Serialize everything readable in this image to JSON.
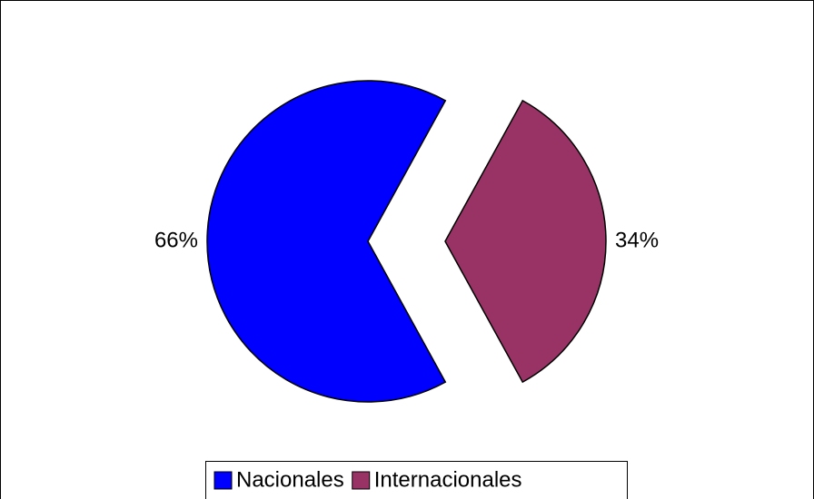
{
  "chart_data": {
    "type": "pie",
    "categories": [
      "Nacionales",
      "Internacionales"
    ],
    "values": [
      66,
      34
    ],
    "value_labels": [
      "66%",
      "34%"
    ],
    "colors": [
      "#0000ff",
      "#993366"
    ],
    "exploded": true,
    "legend": "bottom"
  }
}
